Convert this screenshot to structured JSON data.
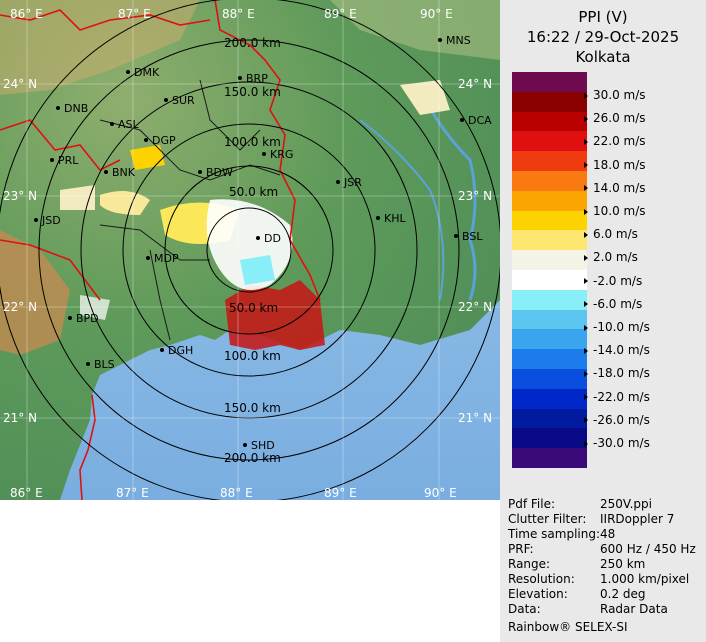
{
  "panel": {
    "title": "PPI (V)",
    "datetime": "16:22 / 29-Oct-2025",
    "station": "Kolkata"
  },
  "legend": {
    "unit_labels": [
      "30.0 m/s",
      "26.0 m/s",
      "22.0 m/s",
      "18.0 m/s",
      "14.0 m/s",
      "10.0 m/s",
      "6.0 m/s",
      "2.0 m/s",
      "-2.0 m/s",
      "-6.0 m/s",
      "-10.0 m/s",
      "-14.0 m/s",
      "-18.0 m/s",
      "-22.0 m/s",
      "-26.0 m/s",
      "-30.0 m/s"
    ],
    "colors": [
      "#6e0a4e",
      "#8b0000",
      "#b80000",
      "#e01010",
      "#f03a10",
      "#f87a10",
      "#fba500",
      "#fcd200",
      "#fde770",
      "#f5f3e6",
      "#ffffff",
      "#88eef8",
      "#5cc6f0",
      "#3ba4ee",
      "#1c7cec",
      "#0a4ee0",
      "#0028c8",
      "#001aa0",
      "#0a0a88",
      "#3a0a78"
    ]
  },
  "map": {
    "longitudes": [
      "86° E",
      "87° E",
      "88° E",
      "89° E",
      "90° E"
    ],
    "latitudes": [
      "24° N",
      "23° N",
      "22° N",
      "21° N"
    ],
    "range_labels": [
      "200.0 km",
      "150.0 km",
      "100.0 km",
      "50.0 km",
      "50.0 km",
      "100.0 km",
      "150.0 km",
      "200.0 km"
    ],
    "stations": [
      "MNS",
      "DMK",
      "BRP",
      "DNB",
      "SUR",
      "ASL",
      "DGP",
      "DCA",
      "PRL",
      "BNK",
      "KRG",
      "BDW",
      "JSR",
      "JSD",
      "KHL",
      "BSL",
      "MDP",
      "DD",
      "BPD",
      "DGH",
      "BLS",
      "SHD"
    ],
    "colors": {
      "land": "#5f9a5a",
      "sea": "#8ebde6",
      "border": "#e01010",
      "ring": "#000000"
    }
  },
  "info": {
    "rows": [
      {
        "key": "Pdf File:",
        "value": "250V.ppi"
      },
      {
        "key": "Clutter Filter:",
        "value": "IIRDoppler 7"
      },
      {
        "key": "Time sampling:",
        "value": "48"
      },
      {
        "key": "PRF:",
        "value": "600 Hz / 450 Hz"
      },
      {
        "key": "Range:",
        "value": "250 km"
      },
      {
        "key": "Resolution:",
        "value": "1.000 km/pixel"
      },
      {
        "key": "Elevation:",
        "value": "0.2 deg"
      },
      {
        "key": "Data:",
        "value": "Radar Data"
      }
    ],
    "credit": "Rainbow® SELEX-SI"
  }
}
